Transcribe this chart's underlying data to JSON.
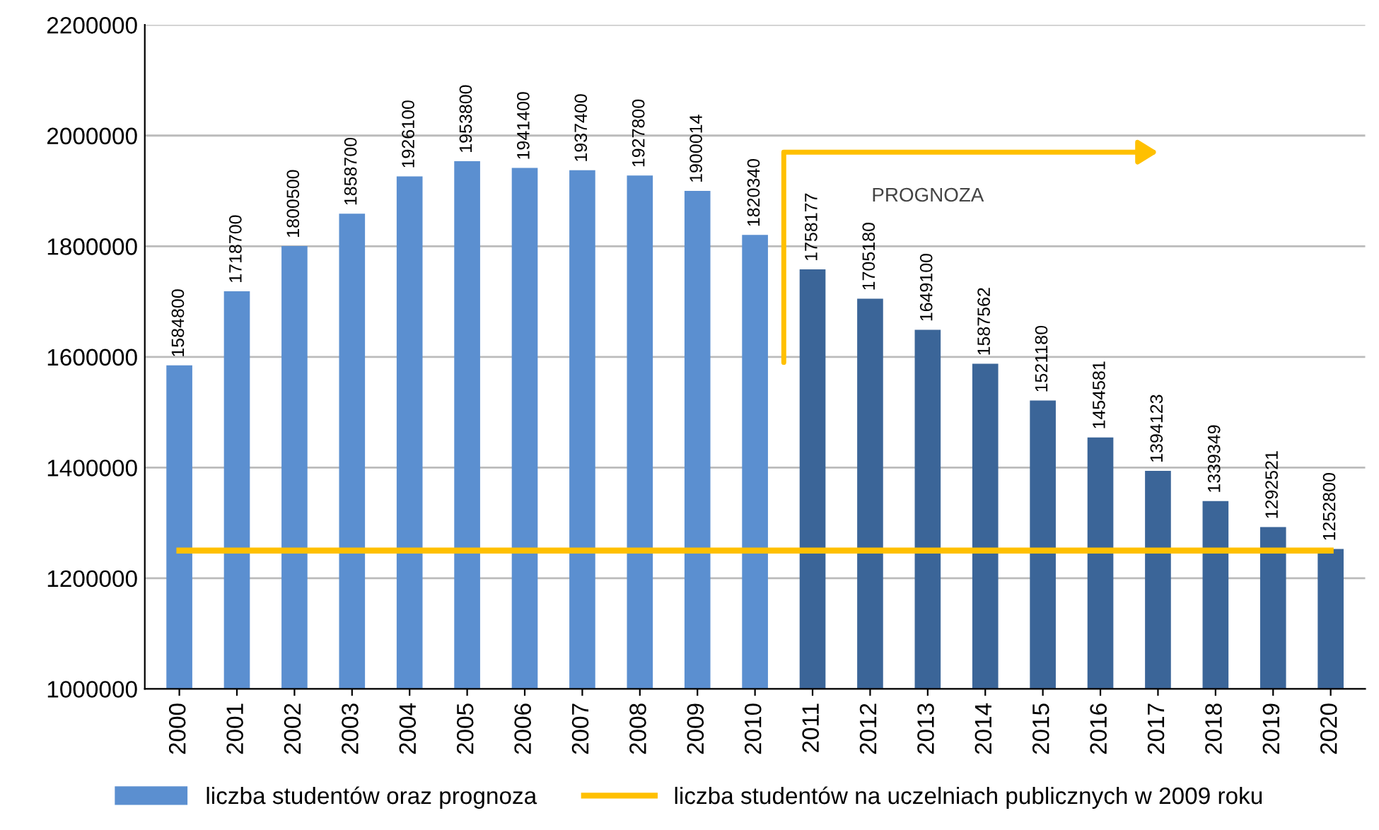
{
  "chart_data": {
    "type": "bar",
    "categories": [
      "2000",
      "2001",
      "2002",
      "2003",
      "2004",
      "2005",
      "2006",
      "2007",
      "2008",
      "2009",
      "2010",
      "2011",
      "2012",
      "2013",
      "2014",
      "2015",
      "2016",
      "2017",
      "2018",
      "2019",
      "2020"
    ],
    "series": [
      {
        "name": "liczba studentów oraz prognoza",
        "color": "#5b8fd0",
        "value_labels": [
          "1584800",
          "1718700",
          "1800500",
          "1858700",
          "1926100",
          "1953800",
          "1941400",
          "1937400",
          "1927800",
          "1900014",
          "1820340",
          "1758177",
          "1705180",
          "1649100",
          "1587562",
          "1521180",
          "1454581",
          "1394123",
          "1339349",
          "1292521",
          "1252800"
        ],
        "colors": [
          "#5b8fd0",
          "#5b8fd0",
          "#5b8fd0",
          "#5b8fd0",
          "#5b8fd0",
          "#5b8fd0",
          "#5b8fd0",
          "#5b8fd0",
          "#5b8fd0",
          "#5b8fd0",
          "#5b8fd0",
          "#3b6598",
          "#3b6598",
          "#3b6598",
          "#3b6598",
          "#3b6598",
          "#3b6598",
          "#3b6598",
          "#3b6598",
          "#3b6598",
          "#3b6598"
        ],
        "values": [
          1584800,
          1718700,
          1800500,
          1858700,
          1926100,
          1953800,
          1941400,
          1937400,
          1927800,
          1900014,
          1820340,
          1758177,
          1705180,
          1649100,
          1587562,
          1521180,
          1454581,
          1394123,
          1339349,
          1292521,
          1252800
        ]
      },
      {
        "name": "liczba studentów na uczelniach publicznych w 2009 roku",
        "type": "line",
        "color": "#ffc000",
        "values": [
          1250000,
          1250000,
          1250000,
          1250000,
          1250000,
          1250000,
          1250000,
          1250000,
          1250000,
          1250000,
          1250000,
          1250000,
          1250000,
          1250000,
          1250000,
          1250000,
          1250000,
          1250000,
          1250000,
          1250000,
          1250000
        ]
      }
    ],
    "ylim": [
      1000000,
      2200000
    ],
    "yticks": [
      1000000,
      1200000,
      1400000,
      1600000,
      1800000,
      2000000,
      2200000
    ],
    "grid": "y",
    "legend": "bottom",
    "marker": "none",
    "line_style": "solid",
    "annotations": [
      "PROGNOZA"
    ]
  }
}
